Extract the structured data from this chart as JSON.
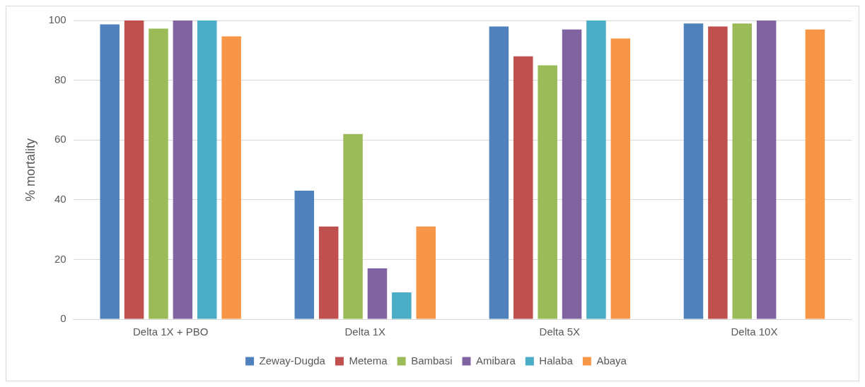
{
  "chart_data": {
    "type": "bar",
    "ylabel": "% mortality",
    "categories": [
      "Delta 1X + PBO",
      "Delta 1X",
      "Delta 5X",
      "Delta 10X"
    ],
    "series": [
      {
        "name": "Zeway-Dugda",
        "color": "#4f81bd",
        "values": [
          98.7,
          43,
          98,
          99
        ]
      },
      {
        "name": "Metema",
        "color": "#c0504d",
        "values": [
          100,
          31,
          88,
          98
        ]
      },
      {
        "name": "Bambasi",
        "color": "#9bbb59",
        "values": [
          97.3,
          62,
          85,
          99
        ]
      },
      {
        "name": "Amibara",
        "color": "#8064a2",
        "values": [
          100,
          17,
          97,
          100
        ]
      },
      {
        "name": "Halaba",
        "color": "#4bacc6",
        "values": [
          100,
          9,
          100,
          null
        ]
      },
      {
        "name": "Abaya",
        "color": "#f79646",
        "values": [
          94.7,
          31,
          94,
          97
        ]
      }
    ],
    "ylim": [
      0,
      100
    ],
    "yticks": [
      0,
      20,
      40,
      60,
      80,
      100
    ],
    "grid": "y",
    "legend": "bottom"
  }
}
